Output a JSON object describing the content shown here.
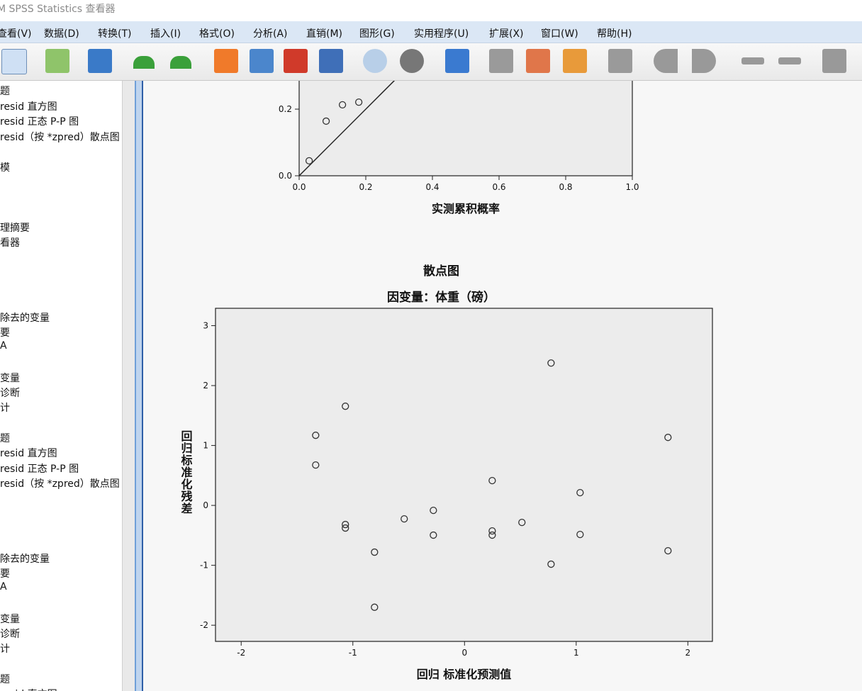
{
  "window": {
    "title": "M SPSS Statistics 查看器"
  },
  "menu": [
    "查看(V)",
    "数据(D)",
    "转换(T)",
    "插入(I)",
    "格式(O)",
    "分析(A)",
    "直销(M)",
    "图形(G)",
    "实用程序(U)",
    "扩展(X)",
    "窗口(W)",
    "帮助(H)"
  ],
  "outline": [
    "题",
    "resid 直方图",
    "resid 正态 P-P 图",
    "resid（按 *zpred）散点图",
    "模",
    "理摘要",
    "看器",
    "除去的变量",
    "要",
    "A",
    "变量",
    "诊断",
    "计",
    "题",
    "resid 直方图",
    "resid 正态 P-P 图",
    "resid（按 *zpred）散点图",
    "除去的变量",
    "要",
    "A",
    "变量",
    "诊断",
    "计",
    "题",
    "resid 直方图"
  ],
  "chart_data": [
    {
      "type": "scatter",
      "xlabel": "实测累积概率",
      "x": [
        0.03,
        0.081,
        0.13,
        0.179
      ],
      "values": [
        0.045,
        0.164,
        0.213,
        0.221
      ],
      "xlim": [
        0,
        1
      ],
      "ylim": [
        0,
        1
      ],
      "reference_line": true,
      "xticks": [
        {
          "value": 0,
          "label": "0.0"
        },
        {
          "value": 0.2,
          "label": "0.2"
        },
        {
          "value": 0.4,
          "label": "0.4"
        },
        {
          "value": 0.6,
          "label": "0.6"
        },
        {
          "value": 0.8,
          "label": "0.8"
        },
        {
          "value": 1,
          "label": "1.0"
        }
      ],
      "yticks": [
        {
          "value": 0,
          "label": "0.0"
        },
        {
          "value": 0.2,
          "label": "0.2"
        }
      ]
    },
    {
      "type": "scatter",
      "title": "散点图",
      "subtitle": "因变量：体重（磅）",
      "xlabel": "回归 标准化预测值",
      "ylabel": "回归标准化残差",
      "x": [
        -1.333,
        -1.333,
        -1.067,
        -1.067,
        -1.067,
        -0.806,
        -0.806,
        -0.54,
        -0.279,
        -0.279,
        0.248,
        0.248,
        0.248,
        0.514,
        0.775,
        0.775,
        1.035,
        1.035,
        1.822,
        1.822
      ],
      "values": [
        1.17,
        0.674,
        1.655,
        -0.319,
        -0.378,
        -0.78,
        -1.7,
        -0.225,
        -0.083,
        -0.496,
        0.414,
        -0.426,
        -0.496,
        -0.284,
        2.376,
        -0.981,
        0.213,
        -0.485,
        1.135,
        -0.757
      ],
      "xlim": [
        -2.23,
        2.22
      ],
      "ylim": [
        -2.27,
        3.29
      ],
      "xticks": [
        -2,
        -1,
        0,
        1,
        2
      ],
      "yticks": [
        -2,
        -1,
        0,
        1,
        2,
        3
      ]
    }
  ]
}
